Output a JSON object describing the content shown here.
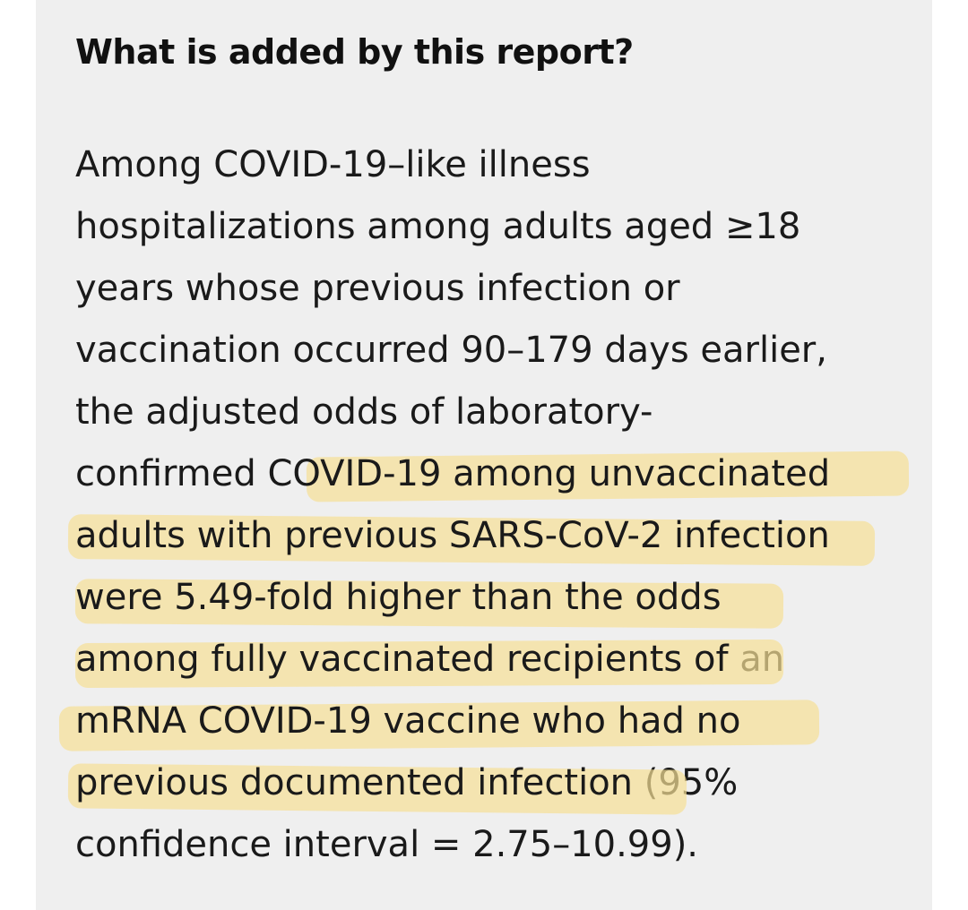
{
  "section": {
    "heading": "What is added by this report?",
    "lines": [
      {
        "plain": "Among COVID-19–like illness",
        "highlight": "",
        "after": ""
      },
      {
        "plain": "hospitalizations among adults aged ≥18",
        "highlight": "",
        "after": ""
      },
      {
        "plain": "years whose previous infection or",
        "highlight": "",
        "after": ""
      },
      {
        "plain": "vaccination occurred 90–179 days earlier,",
        "highlight": "",
        "after": ""
      },
      {
        "plain": "the adjusted odds of laboratory-",
        "highlight": "",
        "after": ""
      },
      {
        "plain": "confirmed ",
        "highlight": "COVID-19 among unvaccinated",
        "after": ""
      },
      {
        "plain": "",
        "highlight": "adults with previous SARS-CoV-2 infection",
        "after": ""
      },
      {
        "plain": "",
        "highlight": "were 5.49-fold higher than the odds",
        "after": ""
      },
      {
        "plain": "",
        "highlight": "among fully vaccinated recipients of",
        "after": " an"
      },
      {
        "plain": "",
        "highlight": "mRNA COVID-19 vaccine who had no",
        "after": ""
      },
      {
        "plain": "",
        "highlight": "previous documented infection",
        "after": " (95%"
      },
      {
        "plain": "confidence interval = 2.75–10.99).",
        "highlight": "",
        "after": ""
      }
    ]
  },
  "colors": {
    "panel_background": "#efefef",
    "highlight": "#f6e096",
    "text": "#1a1a1a"
  }
}
